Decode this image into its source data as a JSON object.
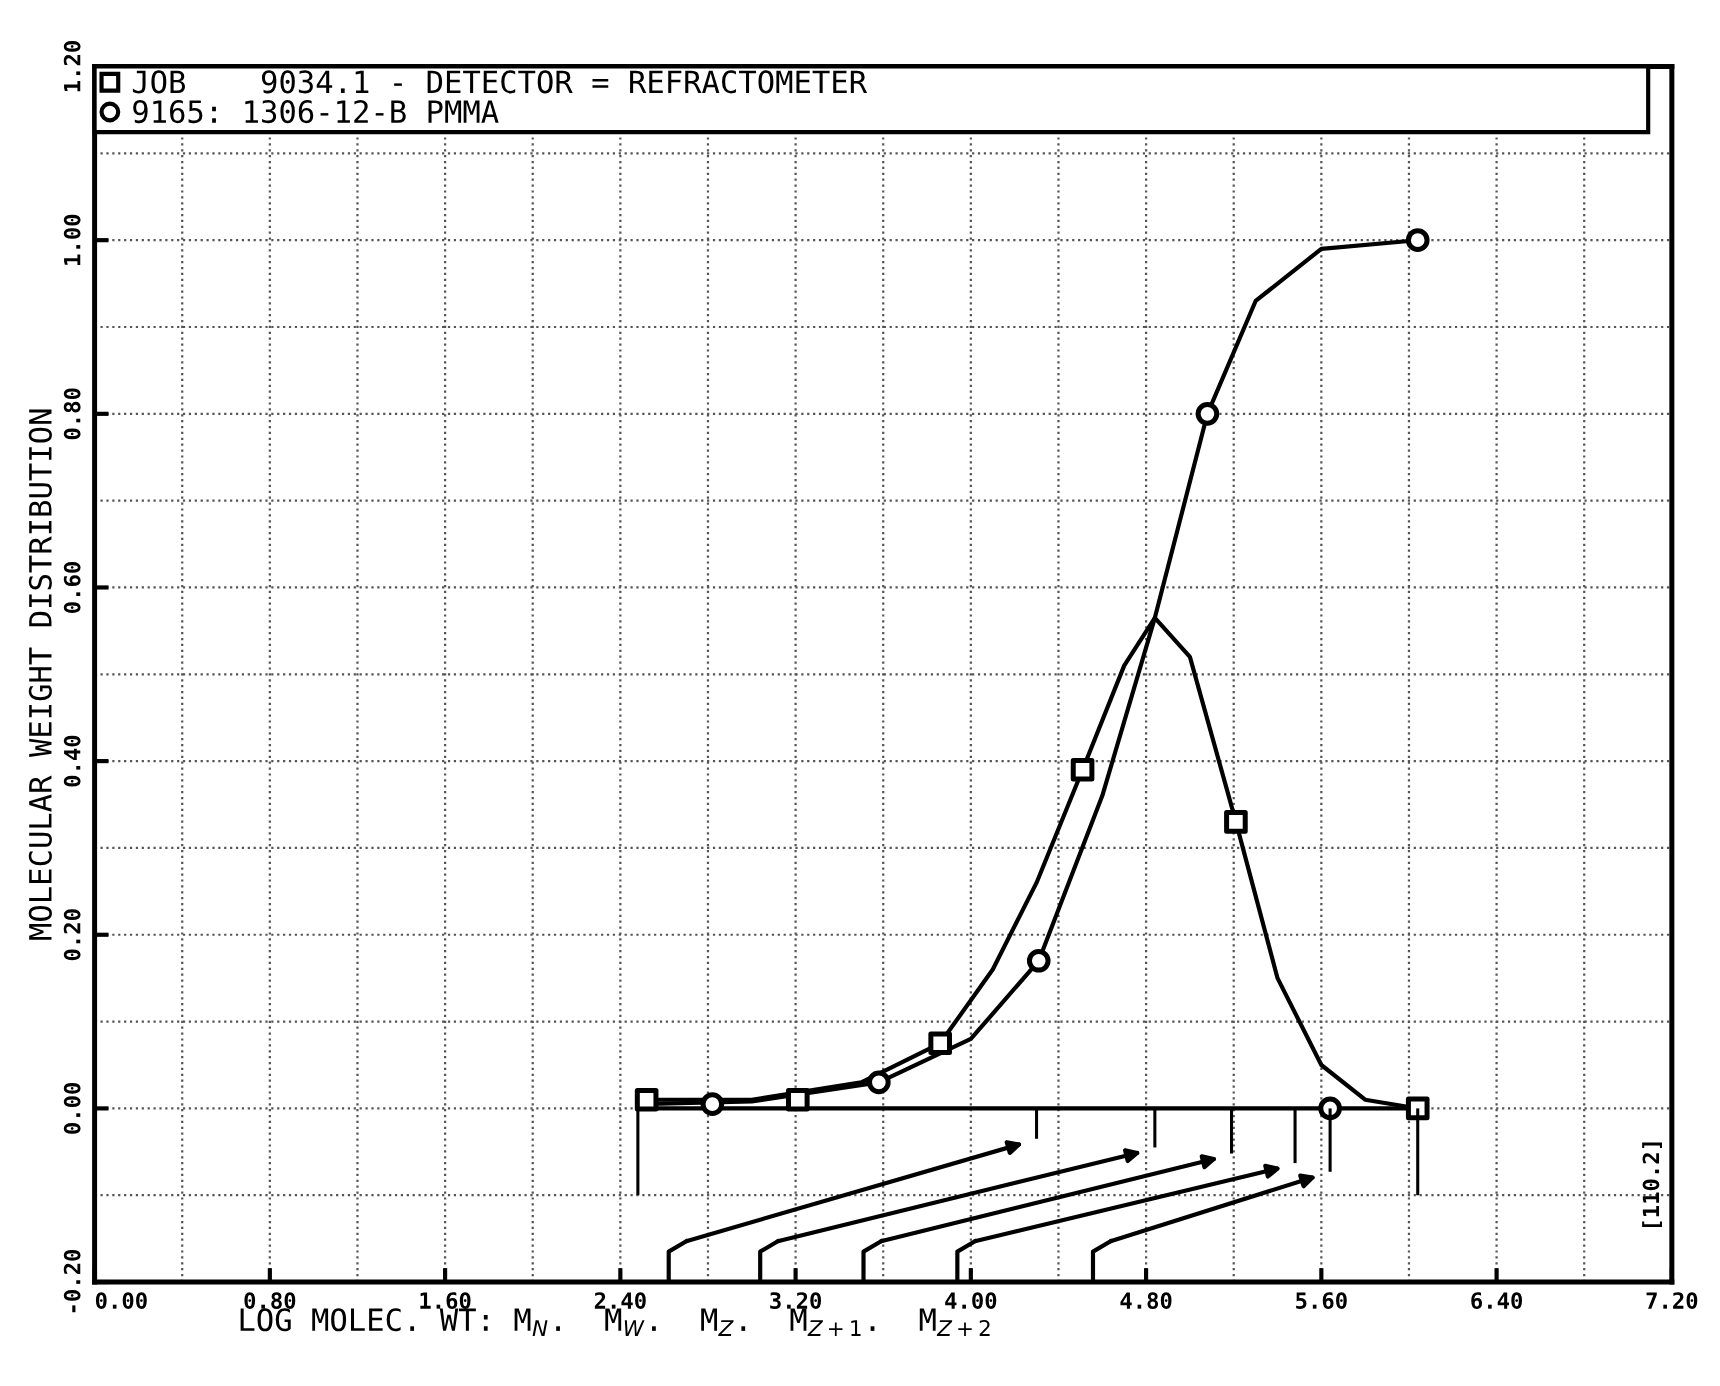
{
  "chart_data": {
    "type": "line",
    "xlabel": "LOG MOLEC. WT: M$_{N}$.  M$_{W}$.  M$_{Z}$.  M$_{Z+1}$.  M$_{Z+2}$",
    "ylabel": "MOLECULAR WEIGHT DISTRIBUTION",
    "annotations": [
      "[110.2]"
    ],
    "xlim": [
      0,
      7.2
    ],
    "xticks": [
      {
        "value": 0,
        "label": "0.00"
      },
      {
        "value": 0.8,
        "label": "0.80"
      },
      {
        "value": 1.6,
        "label": "1.60"
      },
      {
        "value": 2.4,
        "label": "2.40"
      },
      {
        "value": 3.2,
        "label": "3.20"
      },
      {
        "value": 4.0,
        "label": "4.00"
      },
      {
        "value": 4.8,
        "label": "4.80"
      },
      {
        "value": 5.6,
        "label": "5.60"
      },
      {
        "value": 6.4,
        "label": "6.40"
      },
      {
        "value": 7.2,
        "label": "7.20"
      }
    ],
    "ylim": [
      -0.2,
      1.2
    ],
    "yticks": [
      {
        "value": -0.2,
        "label": "-0.20"
      },
      {
        "value": 0,
        "label": "0.00"
      },
      {
        "value": 0.2,
        "label": "0.20"
      },
      {
        "value": 0.4,
        "label": "0.40"
      },
      {
        "value": 0.6,
        "label": "0.60"
      },
      {
        "value": 0.8,
        "label": "0.80"
      },
      {
        "value": 1.0,
        "label": "1.00"
      },
      {
        "value": 1.2,
        "label": "1.20"
      }
    ],
    "grid": true,
    "legend": "top",
    "series": [
      {
        "color": "#000000",
        "x": [
          2.5,
          3.0,
          3.5,
          3.86,
          4.1,
          4.3,
          4.51,
          4.7,
          4.84,
          5.0,
          5.21,
          5.4,
          5.6,
          5.8,
          6.04
        ],
        "values": [
          0.01,
          0.01,
          0.03,
          0.075,
          0.16,
          0.26,
          0.39,
          0.51,
          0.565,
          0.52,
          0.33,
          0.15,
          0.05,
          0.01,
          0.0
        ]
      },
      {
        "type": "line",
        "color": "#000000",
        "x": [
          2.5,
          3.0,
          3.58,
          4.0,
          4.31,
          4.6,
          4.84,
          5.08,
          5.3,
          5.6,
          6.04
        ],
        "values": [
          0.005,
          0.008,
          0.03,
          0.08,
          0.17,
          0.36,
          0.565,
          0.8,
          0.93,
          0.99,
          1.0
        ]
      },
      {
        "type": "scatter",
        "name": "JOB    9034.1 - DETECTOR = REFRACTOMETER",
        "marker": "square",
        "color": "#000000",
        "x": [
          2.52,
          3.21,
          3.86,
          4.51,
          5.21,
          6.04
        ],
        "values": [
          0.01,
          0.01,
          0.075,
          0.39,
          0.33,
          0.0
        ]
      },
      {
        "type": "scatter",
        "name": "9165: 1306-12-B PMMA",
        "marker": "circle",
        "color": "#000000",
        "x": [
          2.82,
          3.58,
          4.31,
          5.08,
          6.04,
          5.64
        ],
        "values": [
          0.005,
          0.03,
          0.17,
          0.8,
          1.0,
          0.0
        ]
      },
      {
        "type": "bar",
        "color": "#000000",
        "x": [
          2.48,
          4.3,
          4.84,
          5.19,
          5.48,
          5.64,
          6.04
        ],
        "base": [
          -0.1,
          -0.035,
          -0.045,
          -0.052,
          -0.063,
          -0.073,
          -0.1
        ],
        "values": [
          0.1,
          0.035,
          0.045,
          0.052,
          0.063,
          0.073,
          0.1
        ]
      }
    ],
    "ref_lines": [
      {
        "axis": "y",
        "value": 0,
        "color": "#000000"
      }
    ]
  }
}
